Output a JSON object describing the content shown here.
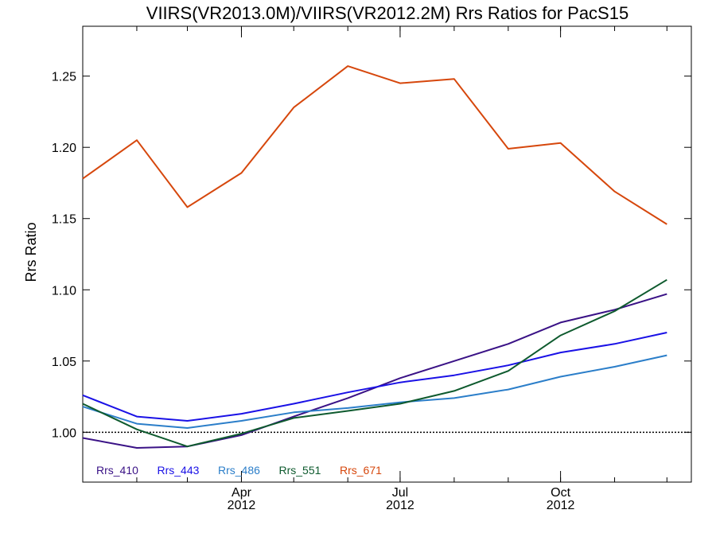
{
  "chart_data": {
    "type": "line",
    "title": "VIIRS(VR2013.0M)/VIIRS(VR2012.2M)  Rrs Ratios for PacS15",
    "xlabel": "",
    "ylabel": "Rrs Ratio",
    "x": [
      "2012-01-01",
      "2012-02-01",
      "2012-03-01",
      "2012-04-01",
      "2012-05-01",
      "2012-06-01",
      "2012-07-01",
      "2012-08-01",
      "2012-09-01",
      "2012-10-01",
      "2012-11-01",
      "2012-12-01"
    ],
    "xlim": [
      "2012-01-01",
      "2012-12-15"
    ],
    "ylim": [
      0.965,
      1.285
    ],
    "yticks": [
      "1.00",
      "1.05",
      "1.10",
      "1.15",
      "1.20",
      "1.25"
    ],
    "xticks": [
      {
        "date": "2012-04-01",
        "month": "Apr",
        "year": "2012"
      },
      {
        "date": "2012-07-01",
        "month": "Jul",
        "year": "2012"
      },
      {
        "date": "2012-10-01",
        "month": "Oct",
        "year": "2012"
      }
    ],
    "reference_line": {
      "y": 1.0,
      "style": "dotted"
    },
    "legend_position": "bottom-left",
    "series": [
      {
        "name": "Rrs_410",
        "color": "#3a1286",
        "values": [
          0.996,
          0.989,
          0.99,
          0.998,
          1.011,
          1.024,
          1.038,
          1.05,
          1.062,
          1.077,
          1.086,
          1.097
        ]
      },
      {
        "name": "Rrs_443",
        "color": "#1a11e6",
        "values": [
          1.026,
          1.011,
          1.008,
          1.013,
          1.02,
          1.028,
          1.035,
          1.04,
          1.047,
          1.056,
          1.062,
          1.07
        ]
      },
      {
        "name": "Rrs_486",
        "color": "#2b7ec9",
        "values": [
          1.018,
          1.006,
          1.003,
          1.008,
          1.014,
          1.017,
          1.021,
          1.024,
          1.03,
          1.039,
          1.046,
          1.054
        ]
      },
      {
        "name": "Rrs_551",
        "color": "#0e5a2e",
        "values": [
          1.02,
          1.002,
          0.99,
          0.999,
          1.01,
          1.015,
          1.02,
          1.029,
          1.043,
          1.068,
          1.085,
          1.107
        ]
      },
      {
        "name": "Rrs_671",
        "color": "#d6470c",
        "values": [
          1.178,
          1.205,
          1.158,
          1.182,
          1.228,
          1.257,
          1.245,
          1.248,
          1.199,
          1.203,
          1.169,
          1.146
        ]
      }
    ]
  }
}
